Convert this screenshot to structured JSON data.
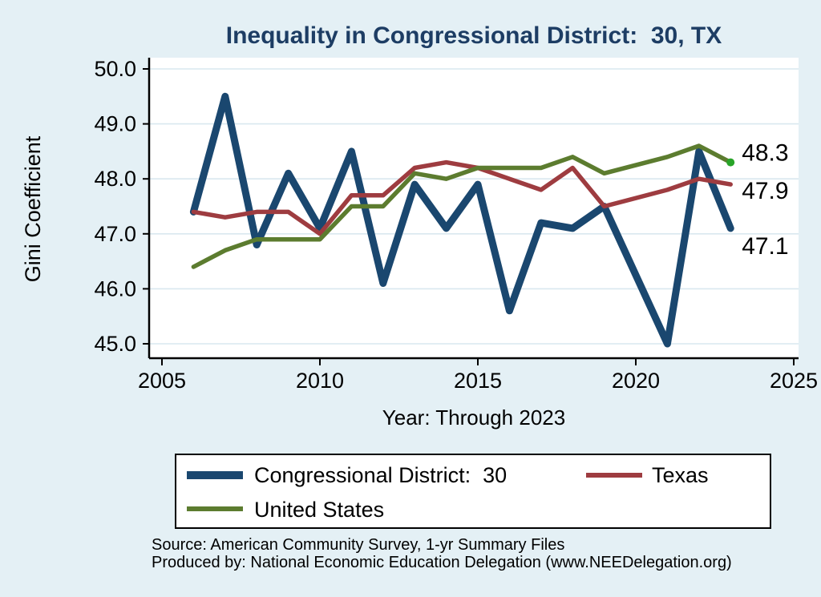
{
  "title": "Inequality in Congressional District:  30, TX",
  "chart_data": {
    "type": "line",
    "x": [
      2006,
      2007,
      2008,
      2009,
      2010,
      2011,
      2012,
      2013,
      2014,
      2015,
      2016,
      2017,
      2018,
      2019,
      2020,
      2021,
      2022,
      2023
    ],
    "series": [
      {
        "name": "Congressional District:  30",
        "color": "#1a476f",
        "line_width": 9,
        "end_label": "47.1",
        "values": [
          47.4,
          49.5,
          46.8,
          48.1,
          47.1,
          48.5,
          46.1,
          47.9,
          47.1,
          47.9,
          45.6,
          47.2,
          47.1,
          47.5,
          null,
          45.0,
          48.5,
          47.1
        ]
      },
      {
        "name": "Texas",
        "color": "#9e3c40",
        "line_width": 5.5,
        "end_label": "47.9",
        "values": [
          47.4,
          47.3,
          47.4,
          47.4,
          47.0,
          47.7,
          47.7,
          48.2,
          48.3,
          48.2,
          48.0,
          47.8,
          48.2,
          47.5,
          null,
          47.8,
          48.0,
          47.9
        ]
      },
      {
        "name": "United States",
        "color": "#5c7c2f",
        "line_width": 5.5,
        "end_label": "48.3",
        "end_marker_color": "#28a428",
        "values": [
          46.4,
          46.7,
          46.9,
          46.9,
          46.9,
          47.5,
          47.5,
          48.1,
          48.0,
          48.2,
          48.2,
          48.2,
          48.4,
          48.1,
          null,
          48.4,
          48.6,
          48.3
        ]
      }
    ],
    "title": "Inequality in Congressional District:  30, TX",
    "xlabel": "Year: Through 2023",
    "ylabel": "Gini Coefficient",
    "xlim": [
      2005,
      2025
    ],
    "ylim": [
      45.0,
      50.0
    ],
    "x_ticks": [
      "2005",
      "2010",
      "2015",
      "2020",
      "2025"
    ],
    "y_ticks": [
      "50.0",
      "49.0",
      "48.0",
      "47.0",
      "46.0",
      "45.0"
    ],
    "grid": "horizontal",
    "legend_position": "bottom"
  },
  "footer": {
    "source": "Source: American Community Survey, 1-yr Summary Files",
    "produced_by": "Produced by: National Economic Education Delegation (www.NEEDelegation.org)"
  },
  "colors": {
    "background": "#e4f0f5",
    "plot_background": "#ffffff",
    "gridline": "#d9e8ef",
    "axis": "#000000",
    "title": "#1d3d64"
  }
}
